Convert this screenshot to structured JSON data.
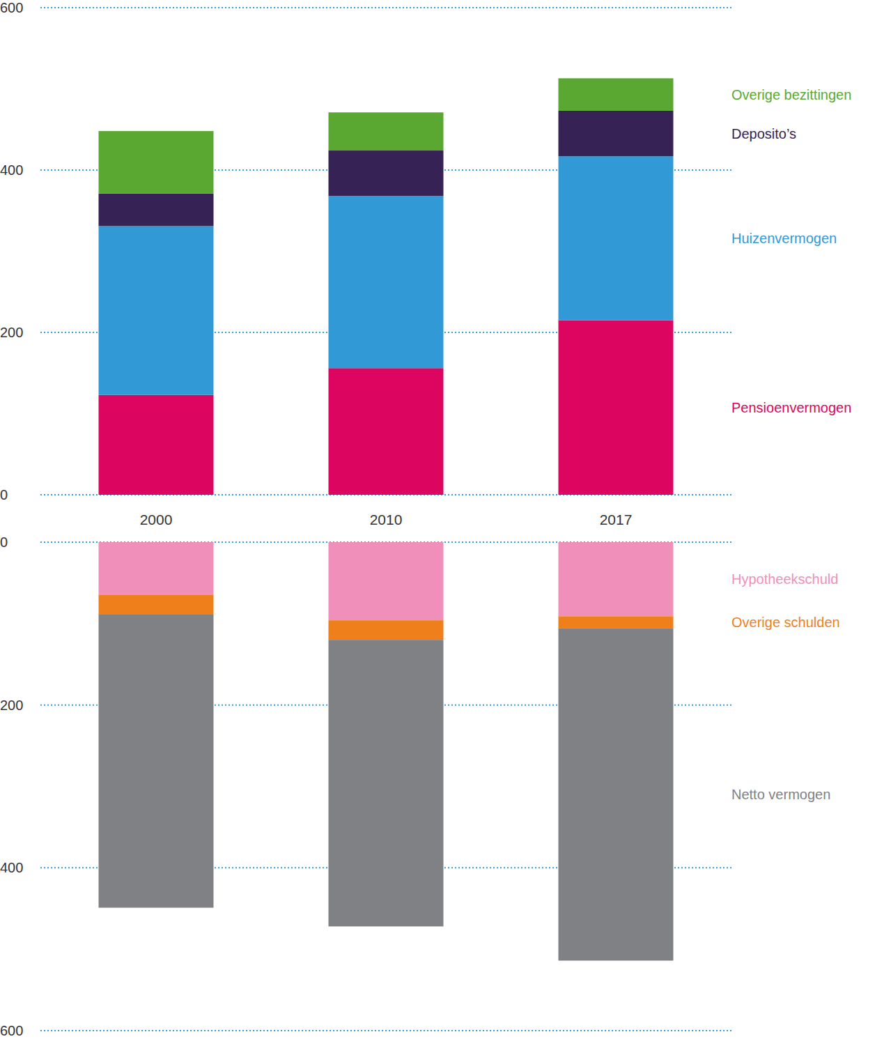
{
  "chart_data": [
    {
      "type": "bar",
      "stacked": true,
      "grid": true,
      "legend": "right",
      "tick_labels": true,
      "categories": [
        "2000",
        "2010",
        "2017"
      ],
      "ylim": [
        0,
        600
      ],
      "yticks": [
        0,
        200,
        400,
        600
      ],
      "series": [
        {
          "name": "Pensioenvermogen",
          "color": "#dc0560",
          "values": [
            123,
            156,
            215
          ]
        },
        {
          "name": "Huizenvermogen",
          "color": "#3199d5",
          "values": [
            208,
            212,
            202
          ]
        },
        {
          "name": "Deposito’s",
          "color": "#362255",
          "values": [
            40,
            56,
            56
          ]
        },
        {
          "name": "Overige bezittingen",
          "color": "#5aa832",
          "values": [
            77,
            47,
            40
          ]
        }
      ]
    },
    {
      "type": "bar",
      "stacked": true,
      "grid": true,
      "legend": "right",
      "tick_labels": "y",
      "categories": [
        "2000",
        "2010",
        "2017"
      ],
      "ylim": [
        0,
        600
      ],
      "yticks": [
        0,
        200,
        400,
        600
      ],
      "series": [
        {
          "name": "Hypotheekschuld",
          "color": "#f08fba",
          "values": [
            65,
            96,
            91
          ]
        },
        {
          "name": "Overige schulden",
          "color": "#ef7f1a",
          "values": [
            24,
            24,
            15
          ]
        },
        {
          "name": "Netto vermogen",
          "color": "#808184",
          "values": [
            360,
            352,
            408
          ]
        }
      ]
    }
  ]
}
